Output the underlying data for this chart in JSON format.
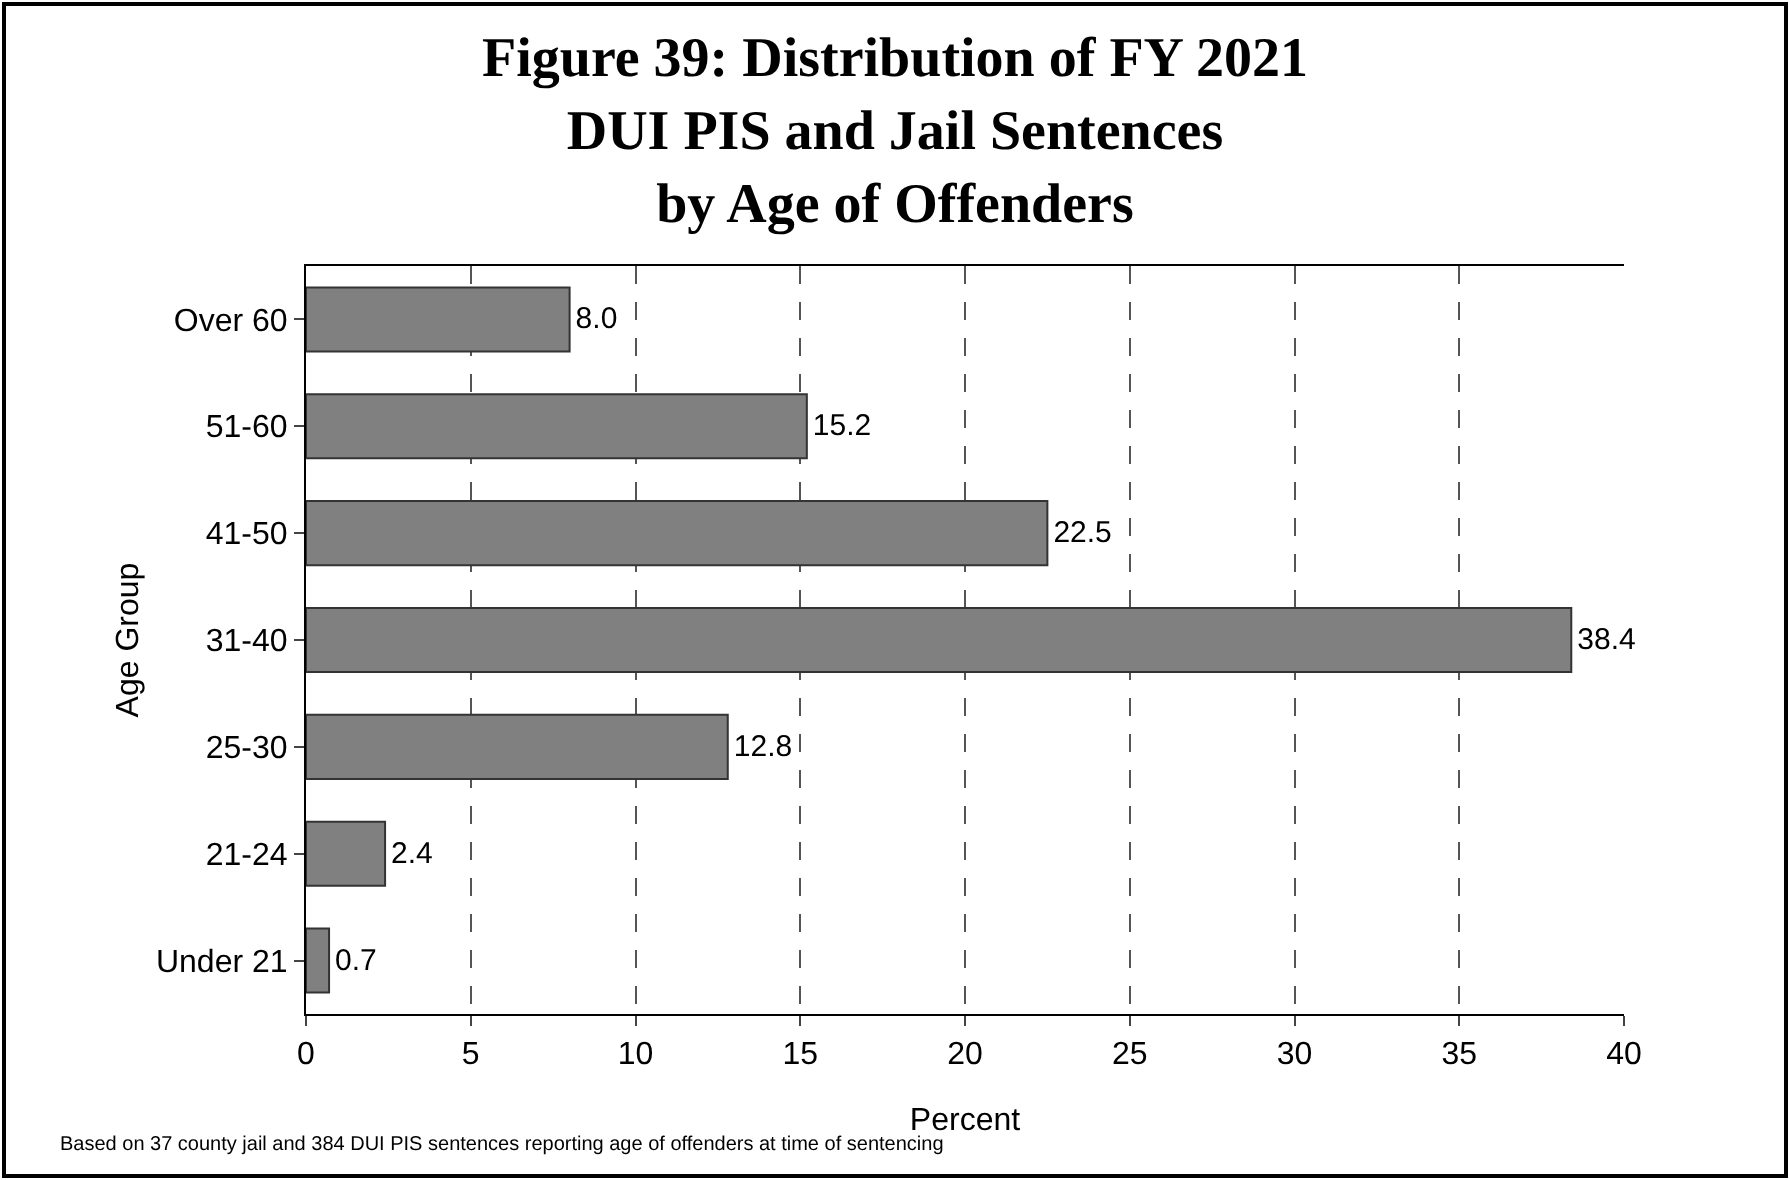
{
  "chart_data": {
    "type": "bar",
    "orientation": "horizontal",
    "title": "Figure 39: Distribution of FY 2021\nDUI PIS and Jail Sentences\nby Age of Offenders",
    "xlabel": "Percent",
    "ylabel": "Age Group",
    "categories": [
      "Over 60",
      "51-60",
      "41-50",
      "31-40",
      "25-30",
      "21-24",
      "Under 21"
    ],
    "values": [
      8.0,
      15.2,
      22.5,
      38.4,
      12.8,
      2.4,
      0.7
    ],
    "value_labels": [
      "8.0",
      "15.2",
      "22.5",
      "38.4",
      "12.8",
      "2.4",
      "0.7"
    ],
    "color": "#808080",
    "xlim": [
      0,
      40
    ],
    "xticks": [
      0,
      5,
      10,
      15,
      20,
      25,
      30,
      35,
      40
    ],
    "grid": "x",
    "legend": false,
    "annotations": [
      "Based on 37 county jail and 384 DUI PIS sentences reporting age of offenders at time of sentencing"
    ]
  }
}
